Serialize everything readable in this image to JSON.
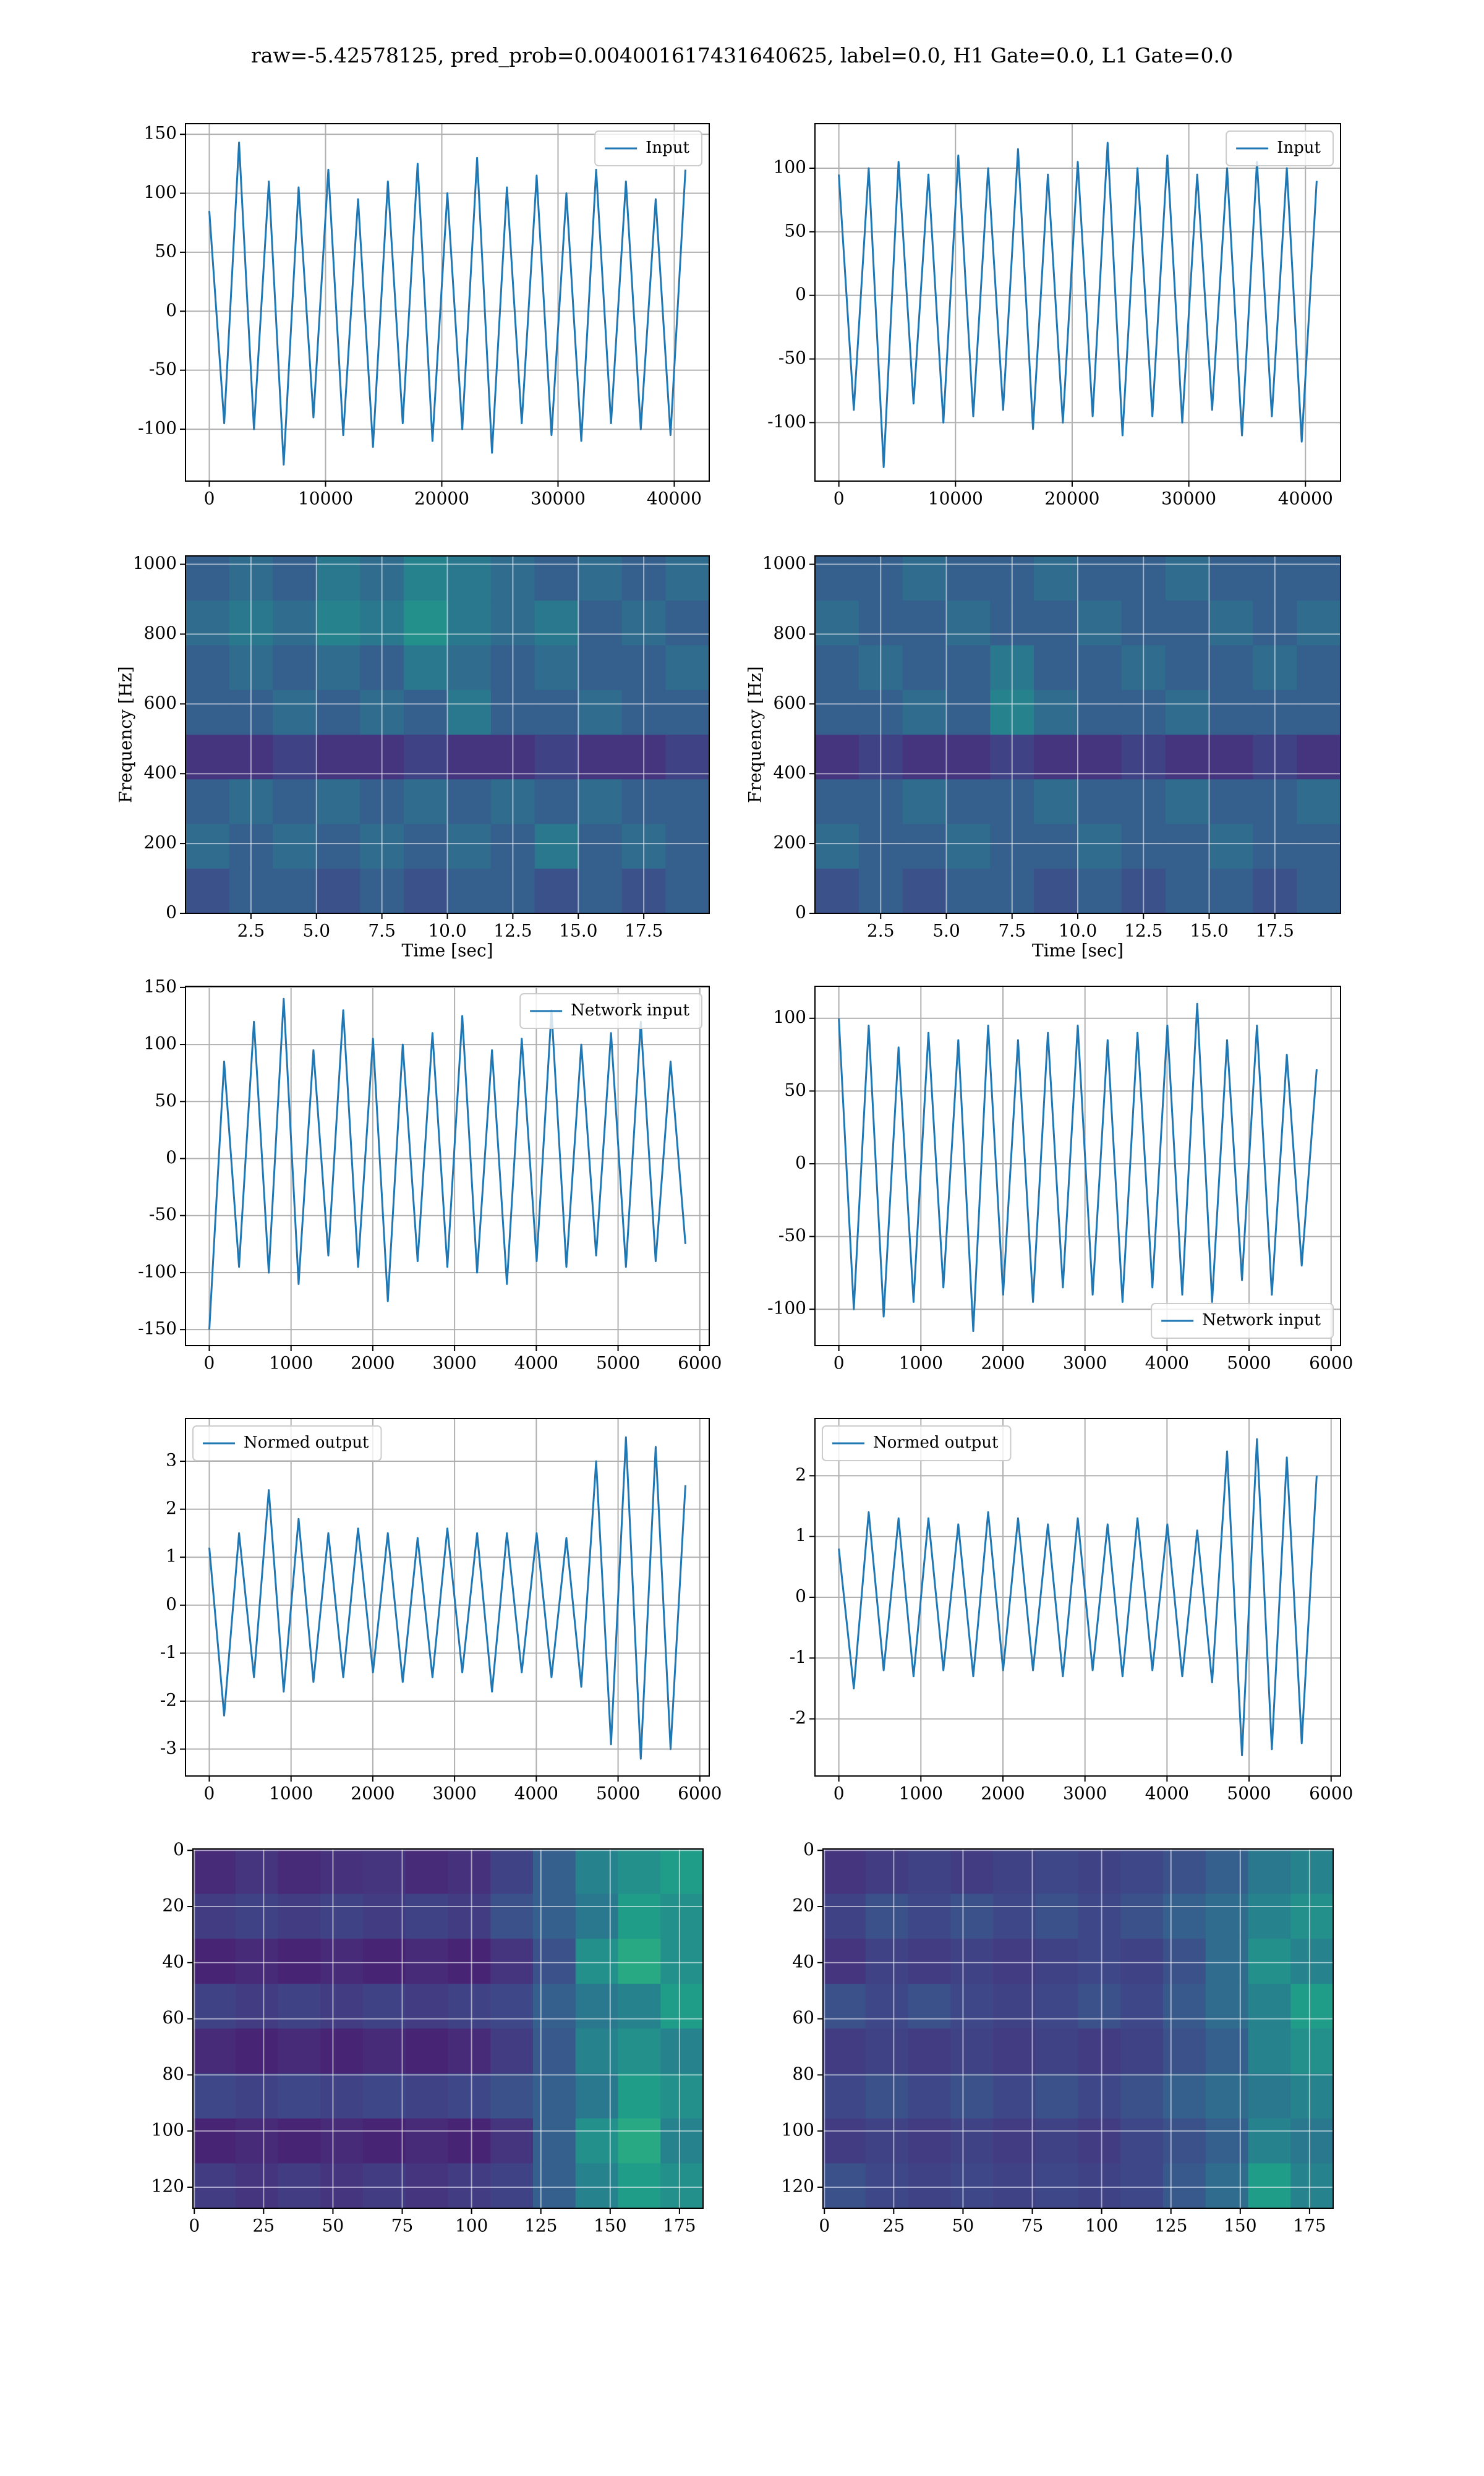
{
  "title": "raw=-5.42578125, pred_prob=0.004001617431640625, label=0.0, H1 Gate=0.0, L1 Gate=0.0",
  "chart_data": [
    {
      "type": "line",
      "xlim": [
        -2048,
        43008
      ],
      "ylim": [
        -144,
        159
      ],
      "xticks": [
        0,
        10000,
        20000,
        30000,
        40000
      ],
      "yticks": [
        -100,
        -50,
        0,
        50,
        100,
        150
      ],
      "grid": true,
      "legend": "upper right",
      "series": [
        {
          "name": "Input",
          "color": "#1f77b4",
          "x": [
            0,
            1280,
            2560,
            3840,
            5120,
            6400,
            7680,
            8960,
            10240,
            11520,
            12800,
            14080,
            15360,
            16640,
            17920,
            19200,
            20480,
            21760,
            23040,
            24320,
            25600,
            26880,
            28160,
            29440,
            30720,
            32000,
            33280,
            34560,
            35840,
            37120,
            38400,
            39680,
            40960
          ],
          "values": [
            85,
            -95,
            143,
            -100,
            110,
            -130,
            105,
            -90,
            120,
            -105,
            95,
            -115,
            110,
            -95,
            125,
            -110,
            100,
            -100,
            130,
            -120,
            105,
            -95,
            115,
            -105,
            100,
            -110,
            120,
            -95,
            110,
            -100,
            95,
            -105,
            120
          ]
        }
      ]
    },
    {
      "type": "line",
      "xlim": [
        -2048,
        43008
      ],
      "ylim": [
        -146,
        135
      ],
      "xticks": [
        0,
        10000,
        20000,
        30000,
        40000
      ],
      "yticks": [
        -100,
        -50,
        0,
        50,
        100
      ],
      "grid": true,
      "legend": "upper right",
      "series": [
        {
          "name": "Input",
          "color": "#1f77b4",
          "x": [
            0,
            1280,
            2560,
            3840,
            5120,
            6400,
            7680,
            8960,
            10240,
            11520,
            12800,
            14080,
            15360,
            16640,
            17920,
            19200,
            20480,
            21760,
            23040,
            24320,
            25600,
            26880,
            28160,
            29440,
            30720,
            32000,
            33280,
            34560,
            35840,
            37120,
            38400,
            39680,
            40960
          ],
          "values": [
            95,
            -90,
            100,
            -135,
            105,
            -85,
            95,
            -100,
            110,
            -95,
            100,
            -90,
            115,
            -105,
            95,
            -100,
            105,
            -95,
            120,
            -110,
            100,
            -95,
            110,
            -100,
            95,
            -90,
            100,
            -110,
            105,
            -95,
            100,
            -115,
            90
          ]
        }
      ]
    },
    {
      "type": "heatmap",
      "colormap": "viridis",
      "xlabel": "Time [sec]",
      "ylabel": "Frequency [Hz]",
      "xlim": [
        0,
        20
      ],
      "ylim": [
        0,
        1024
      ],
      "xticks": [
        2.5,
        {
          "value": 5,
          "label": "5.0"
        },
        7.5,
        {
          "value": 10,
          "label": "10.0"
        },
        12.5,
        {
          "value": 15,
          "label": "15.0"
        },
        17.5
      ],
      "yticks": [
        0,
        200,
        400,
        600,
        800,
        1000
      ],
      "grid": true,
      "z": [
        [
          0.3,
          0.35,
          0.3,
          0.4,
          0.35,
          0.45,
          0.4,
          0.35,
          0.3,
          0.35,
          0.3,
          0.35
        ],
        [
          0.35,
          0.4,
          0.35,
          0.45,
          0.4,
          0.5,
          0.4,
          0.35,
          0.4,
          0.3,
          0.35,
          0.3
        ],
        [
          0.3,
          0.35,
          0.3,
          0.35,
          0.3,
          0.4,
          0.35,
          0.3,
          0.35,
          0.3,
          0.3,
          0.35
        ],
        [
          0.3,
          0.3,
          0.35,
          0.3,
          0.35,
          0.3,
          0.4,
          0.3,
          0.3,
          0.35,
          0.3,
          0.3
        ],
        [
          0.15,
          0.15,
          0.2,
          0.15,
          0.15,
          0.2,
          0.15,
          0.15,
          0.2,
          0.15,
          0.15,
          0.2
        ],
        [
          0.3,
          0.35,
          0.3,
          0.35,
          0.3,
          0.35,
          0.3,
          0.35,
          0.3,
          0.35,
          0.3,
          0.3
        ],
        [
          0.35,
          0.3,
          0.35,
          0.3,
          0.35,
          0.3,
          0.35,
          0.3,
          0.4,
          0.3,
          0.35,
          0.3
        ],
        [
          0.25,
          0.3,
          0.3,
          0.25,
          0.3,
          0.25,
          0.3,
          0.3,
          0.25,
          0.3,
          0.25,
          0.3
        ]
      ]
    },
    {
      "type": "heatmap",
      "colormap": "viridis",
      "xlabel": "Time [sec]",
      "ylabel": "Frequency [Hz]",
      "xlim": [
        0,
        20
      ],
      "ylim": [
        0,
        1024
      ],
      "xticks": [
        2.5,
        {
          "value": 5,
          "label": "5.0"
        },
        7.5,
        {
          "value": 10,
          "label": "10.0"
        },
        12.5,
        {
          "value": 15,
          "label": "15.0"
        },
        17.5
      ],
      "yticks": [
        0,
        200,
        400,
        600,
        800,
        1000
      ],
      "grid": true,
      "z": [
        [
          0.3,
          0.3,
          0.35,
          0.3,
          0.3,
          0.35,
          0.3,
          0.3,
          0.35,
          0.3,
          0.3,
          0.3
        ],
        [
          0.35,
          0.3,
          0.3,
          0.35,
          0.3,
          0.3,
          0.35,
          0.3,
          0.3,
          0.35,
          0.3,
          0.35
        ],
        [
          0.3,
          0.35,
          0.3,
          0.3,
          0.4,
          0.3,
          0.3,
          0.35,
          0.3,
          0.3,
          0.35,
          0.3
        ],
        [
          0.3,
          0.3,
          0.35,
          0.3,
          0.45,
          0.35,
          0.3,
          0.3,
          0.35,
          0.3,
          0.3,
          0.3
        ],
        [
          0.15,
          0.2,
          0.15,
          0.15,
          0.2,
          0.15,
          0.15,
          0.2,
          0.15,
          0.15,
          0.2,
          0.15
        ],
        [
          0.3,
          0.3,
          0.35,
          0.3,
          0.3,
          0.35,
          0.3,
          0.3,
          0.35,
          0.3,
          0.3,
          0.35
        ],
        [
          0.35,
          0.3,
          0.3,
          0.35,
          0.3,
          0.3,
          0.35,
          0.3,
          0.3,
          0.35,
          0.3,
          0.3
        ],
        [
          0.25,
          0.3,
          0.25,
          0.3,
          0.3,
          0.25,
          0.3,
          0.25,
          0.3,
          0.3,
          0.25,
          0.3
        ]
      ]
    },
    {
      "type": "line",
      "xlim": [
        -291,
        6115
      ],
      "ylim": [
        -164,
        151
      ],
      "xticks": [
        0,
        1000,
        2000,
        3000,
        4000,
        5000,
        6000
      ],
      "yticks": [
        -150,
        -100,
        -50,
        0,
        50,
        100,
        150
      ],
      "grid": true,
      "legend": "upper right",
      "series": [
        {
          "name": "Network input",
          "color": "#1f77b4",
          "x": [
            0,
            182,
            364,
            546,
            728,
            910,
            1092,
            1274,
            1456,
            1638,
            1820,
            2002,
            2184,
            2366,
            2548,
            2730,
            2912,
            3094,
            3276,
            3458,
            3640,
            3822,
            4004,
            4186,
            4368,
            4550,
            4732,
            4914,
            5096,
            5278,
            5460,
            5642,
            5824
          ],
          "values": [
            -150,
            85,
            -95,
            120,
            -100,
            140,
            -110,
            95,
            -85,
            130,
            -95,
            105,
            -125,
            100,
            -90,
            110,
            -95,
            125,
            -100,
            95,
            -110,
            105,
            -90,
            130,
            -95,
            100,
            -85,
            110,
            -95,
            120,
            -90,
            85,
            -75
          ]
        }
      ]
    },
    {
      "type": "line",
      "xlim": [
        -291,
        6115
      ],
      "ylim": [
        -125,
        122
      ],
      "xticks": [
        0,
        1000,
        2000,
        3000,
        4000,
        5000,
        6000
      ],
      "yticks": [
        -100,
        -50,
        0,
        50,
        100
      ],
      "grid": true,
      "legend": "lower right",
      "series": [
        {
          "name": "Network input",
          "color": "#1f77b4",
          "x": [
            0,
            182,
            364,
            546,
            728,
            910,
            1092,
            1274,
            1456,
            1638,
            1820,
            2002,
            2184,
            2366,
            2548,
            2730,
            2912,
            3094,
            3276,
            3458,
            3640,
            3822,
            4004,
            4186,
            4368,
            4550,
            4732,
            4914,
            5096,
            5278,
            5460,
            5642,
            5824
          ],
          "values": [
            100,
            -100,
            95,
            -105,
            80,
            -95,
            90,
            -85,
            85,
            -115,
            95,
            -90,
            85,
            -95,
            90,
            -85,
            95,
            -90,
            85,
            -95,
            90,
            -85,
            95,
            -90,
            110,
            -95,
            85,
            -80,
            95,
            -90,
            75,
            -70,
            65
          ]
        }
      ]
    },
    {
      "type": "line",
      "xlim": [
        -291,
        6115
      ],
      "ylim": [
        -3.56,
        3.89
      ],
      "xticks": [
        0,
        1000,
        2000,
        3000,
        4000,
        5000,
        6000
      ],
      "yticks": [
        -3,
        -2,
        -1,
        0,
        1,
        2,
        3
      ],
      "grid": true,
      "legend": "upper left",
      "series": [
        {
          "name": "Normed output",
          "color": "#1f77b4",
          "x": [
            0,
            182,
            364,
            546,
            728,
            910,
            1092,
            1274,
            1456,
            1638,
            1820,
            2002,
            2184,
            2366,
            2548,
            2730,
            2912,
            3094,
            3276,
            3458,
            3640,
            3822,
            4004,
            4186,
            4368,
            4550,
            4732,
            4914,
            5096,
            5278,
            5460,
            5642,
            5824
          ],
          "values": [
            1.2,
            -2.3,
            1.5,
            -1.5,
            2.4,
            -1.8,
            1.8,
            -1.6,
            1.5,
            -1.5,
            1.6,
            -1.4,
            1.5,
            -1.6,
            1.4,
            -1.5,
            1.6,
            -1.4,
            1.5,
            -1.8,
            1.5,
            -1.4,
            1.5,
            -1.5,
            1.4,
            -1.7,
            3.0,
            -2.9,
            3.5,
            -3.2,
            3.3,
            -3.0,
            2.5
          ]
        }
      ]
    },
    {
      "type": "line",
      "xlim": [
        -291,
        6115
      ],
      "ylim": [
        -2.94,
        2.94
      ],
      "xticks": [
        0,
        1000,
        2000,
        3000,
        4000,
        5000,
        6000
      ],
      "yticks": [
        -2,
        -1,
        0,
        1,
        2
      ],
      "grid": true,
      "legend": "upper left",
      "series": [
        {
          "name": "Normed output",
          "color": "#1f77b4",
          "x": [
            0,
            182,
            364,
            546,
            728,
            910,
            1092,
            1274,
            1456,
            1638,
            1820,
            2002,
            2184,
            2366,
            2548,
            2730,
            2912,
            3094,
            3276,
            3458,
            3640,
            3822,
            4004,
            4186,
            4368,
            4550,
            4732,
            4914,
            5096,
            5278,
            5460,
            5642,
            5824
          ],
          "values": [
            0.8,
            -1.5,
            1.4,
            -1.2,
            1.3,
            -1.3,
            1.3,
            -1.2,
            1.2,
            -1.3,
            1.4,
            -1.2,
            1.3,
            -1.2,
            1.2,
            -1.3,
            1.3,
            -1.2,
            1.2,
            -1.3,
            1.3,
            -1.2,
            1.2,
            -1.3,
            1.1,
            -1.4,
            2.4,
            -2.6,
            2.6,
            -2.5,
            2.3,
            -2.4,
            2.0
          ]
        }
      ]
    },
    {
      "type": "heatmap",
      "colormap": "viridis",
      "xlim": [
        -0.5,
        183.5
      ],
      "ylim": [
        127.5,
        -0.5
      ],
      "xticks": [
        0,
        25,
        50,
        75,
        100,
        125,
        150,
        175
      ],
      "yticks": [
        0,
        20,
        40,
        60,
        80,
        100,
        120
      ],
      "grid": true,
      "z": [
        [
          0.12,
          0.15,
          0.12,
          0.14,
          0.15,
          0.12,
          0.14,
          0.2,
          0.3,
          0.45,
          0.5,
          0.55
        ],
        [
          0.18,
          0.2,
          0.18,
          0.2,
          0.18,
          0.2,
          0.18,
          0.25,
          0.3,
          0.4,
          0.55,
          0.5
        ],
        [
          0.1,
          0.12,
          0.1,
          0.12,
          0.1,
          0.12,
          0.1,
          0.15,
          0.25,
          0.5,
          0.6,
          0.5
        ],
        [
          0.2,
          0.18,
          0.2,
          0.18,
          0.2,
          0.18,
          0.2,
          0.22,
          0.3,
          0.4,
          0.45,
          0.55
        ],
        [
          0.12,
          0.1,
          0.12,
          0.1,
          0.12,
          0.1,
          0.12,
          0.18,
          0.28,
          0.45,
          0.5,
          0.45
        ],
        [
          0.22,
          0.2,
          0.22,
          0.2,
          0.22,
          0.2,
          0.22,
          0.25,
          0.3,
          0.4,
          0.55,
          0.5
        ],
        [
          0.1,
          0.12,
          0.1,
          0.12,
          0.1,
          0.12,
          0.1,
          0.15,
          0.3,
          0.5,
          0.6,
          0.45
        ],
        [
          0.18,
          0.15,
          0.18,
          0.15,
          0.18,
          0.15,
          0.18,
          0.2,
          0.3,
          0.45,
          0.55,
          0.5
        ]
      ]
    },
    {
      "type": "heatmap",
      "colormap": "viridis",
      "xlim": [
        -0.5,
        183.5
      ],
      "ylim": [
        127.5,
        -0.5
      ],
      "xticks": [
        0,
        25,
        50,
        75,
        100,
        125,
        150,
        175
      ],
      "yticks": [
        0,
        20,
        40,
        60,
        80,
        100,
        120
      ],
      "grid": true,
      "z": [
        [
          0.15,
          0.18,
          0.2,
          0.18,
          0.2,
          0.22,
          0.2,
          0.22,
          0.25,
          0.3,
          0.4,
          0.45
        ],
        [
          0.2,
          0.25,
          0.22,
          0.25,
          0.22,
          0.25,
          0.22,
          0.25,
          0.3,
          0.35,
          0.45,
          0.5
        ],
        [
          0.15,
          0.2,
          0.18,
          0.2,
          0.18,
          0.2,
          0.22,
          0.2,
          0.25,
          0.35,
          0.5,
          0.45
        ],
        [
          0.25,
          0.22,
          0.25,
          0.22,
          0.2,
          0.22,
          0.25,
          0.22,
          0.28,
          0.35,
          0.45,
          0.55
        ],
        [
          0.18,
          0.2,
          0.18,
          0.2,
          0.18,
          0.2,
          0.18,
          0.2,
          0.25,
          0.3,
          0.45,
          0.5
        ],
        [
          0.22,
          0.25,
          0.22,
          0.25,
          0.22,
          0.25,
          0.22,
          0.25,
          0.3,
          0.35,
          0.4,
          0.45
        ],
        [
          0.18,
          0.2,
          0.18,
          0.2,
          0.18,
          0.2,
          0.18,
          0.22,
          0.25,
          0.3,
          0.45,
          0.4
        ],
        [
          0.25,
          0.22,
          0.2,
          0.22,
          0.2,
          0.22,
          0.2,
          0.22,
          0.28,
          0.35,
          0.55,
          0.45
        ]
      ]
    }
  ]
}
